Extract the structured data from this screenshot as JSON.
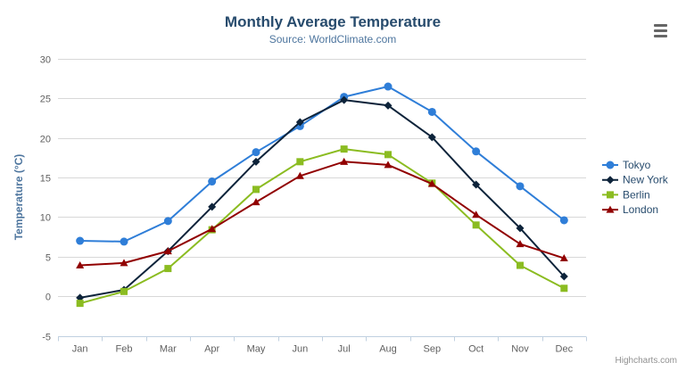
{
  "title": "Monthly Average Temperature",
  "subtitle": "Source: WorldClimate.com",
  "credits": "Highcharts.com",
  "export_menu": {
    "icon": "hamburger-menu-icon"
  },
  "chart_data": {
    "type": "line",
    "title": "Monthly Average Temperature",
    "subtitle": "Source: WorldClimate.com",
    "categories": [
      "Jan",
      "Feb",
      "Mar",
      "Apr",
      "May",
      "Jun",
      "Jul",
      "Aug",
      "Sep",
      "Oct",
      "Nov",
      "Dec"
    ],
    "xlabel": "",
    "ylabel": "Temperature (°C)",
    "ylim": [
      -5,
      30
    ],
    "ytick_step": 5,
    "grid": true,
    "legend_position": "right",
    "series": [
      {
        "name": "Tokyo",
        "color": "#2f7ed8",
        "marker": "circle",
        "values": [
          7.0,
          6.9,
          9.5,
          14.5,
          18.2,
          21.5,
          25.2,
          26.5,
          23.3,
          18.3,
          13.9,
          9.6
        ]
      },
      {
        "name": "New York",
        "color": "#0d233a",
        "marker": "diamond",
        "values": [
          -0.2,
          0.8,
          5.7,
          11.3,
          17.0,
          22.0,
          24.8,
          24.1,
          20.1,
          14.1,
          8.6,
          2.5
        ]
      },
      {
        "name": "Berlin",
        "color": "#8bbc21",
        "marker": "square",
        "values": [
          -0.9,
          0.6,
          3.5,
          8.4,
          13.5,
          17.0,
          18.6,
          17.9,
          14.3,
          9.0,
          3.9,
          1.0
        ]
      },
      {
        "name": "London",
        "color": "#910000",
        "marker": "triangle",
        "values": [
          3.9,
          4.2,
          5.7,
          8.5,
          11.9,
          15.2,
          17.0,
          16.6,
          14.2,
          10.3,
          6.6,
          4.8
        ]
      }
    ],
    "colors": {
      "title_text": "#274b6d",
      "subtitle_text": "#4d759e",
      "axis_title_text": "#4d759e",
      "tick_label_text": "#606060",
      "legend_text": "#274b6d",
      "grid_line": "#d8d8d8",
      "axis_line": "#c0d0e0",
      "credits_text": "#909090"
    }
  }
}
